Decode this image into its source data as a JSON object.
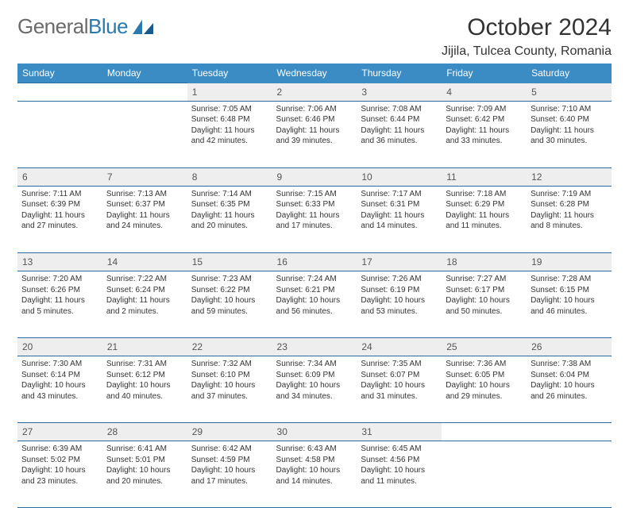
{
  "logo": {
    "word1": "General",
    "word2": "Blue"
  },
  "header": {
    "title": "October 2024",
    "location": "Jijila, Tulcea County, Romania"
  },
  "colors": {
    "header_bg": "#3b8bc4",
    "header_text": "#ffffff",
    "daynum_bg": "#eeeeee",
    "row_divider": "#2a6aa0",
    "text": "#333333",
    "logo_gray": "#6a6a6a",
    "logo_blue": "#2a7ab0"
  },
  "dayNames": [
    "Sunday",
    "Monday",
    "Tuesday",
    "Wednesday",
    "Thursday",
    "Friday",
    "Saturday"
  ],
  "weeks": [
    [
      null,
      null,
      {
        "n": "1",
        "sr": "Sunrise: 7:05 AM",
        "ss": "Sunset: 6:48 PM",
        "dl": "Daylight: 11 hours and 42 minutes."
      },
      {
        "n": "2",
        "sr": "Sunrise: 7:06 AM",
        "ss": "Sunset: 6:46 PM",
        "dl": "Daylight: 11 hours and 39 minutes."
      },
      {
        "n": "3",
        "sr": "Sunrise: 7:08 AM",
        "ss": "Sunset: 6:44 PM",
        "dl": "Daylight: 11 hours and 36 minutes."
      },
      {
        "n": "4",
        "sr": "Sunrise: 7:09 AM",
        "ss": "Sunset: 6:42 PM",
        "dl": "Daylight: 11 hours and 33 minutes."
      },
      {
        "n": "5",
        "sr": "Sunrise: 7:10 AM",
        "ss": "Sunset: 6:40 PM",
        "dl": "Daylight: 11 hours and 30 minutes."
      }
    ],
    [
      {
        "n": "6",
        "sr": "Sunrise: 7:11 AM",
        "ss": "Sunset: 6:39 PM",
        "dl": "Daylight: 11 hours and 27 minutes."
      },
      {
        "n": "7",
        "sr": "Sunrise: 7:13 AM",
        "ss": "Sunset: 6:37 PM",
        "dl": "Daylight: 11 hours and 24 minutes."
      },
      {
        "n": "8",
        "sr": "Sunrise: 7:14 AM",
        "ss": "Sunset: 6:35 PM",
        "dl": "Daylight: 11 hours and 20 minutes."
      },
      {
        "n": "9",
        "sr": "Sunrise: 7:15 AM",
        "ss": "Sunset: 6:33 PM",
        "dl": "Daylight: 11 hours and 17 minutes."
      },
      {
        "n": "10",
        "sr": "Sunrise: 7:17 AM",
        "ss": "Sunset: 6:31 PM",
        "dl": "Daylight: 11 hours and 14 minutes."
      },
      {
        "n": "11",
        "sr": "Sunrise: 7:18 AM",
        "ss": "Sunset: 6:29 PM",
        "dl": "Daylight: 11 hours and 11 minutes."
      },
      {
        "n": "12",
        "sr": "Sunrise: 7:19 AM",
        "ss": "Sunset: 6:28 PM",
        "dl": "Daylight: 11 hours and 8 minutes."
      }
    ],
    [
      {
        "n": "13",
        "sr": "Sunrise: 7:20 AM",
        "ss": "Sunset: 6:26 PM",
        "dl": "Daylight: 11 hours and 5 minutes."
      },
      {
        "n": "14",
        "sr": "Sunrise: 7:22 AM",
        "ss": "Sunset: 6:24 PM",
        "dl": "Daylight: 11 hours and 2 minutes."
      },
      {
        "n": "15",
        "sr": "Sunrise: 7:23 AM",
        "ss": "Sunset: 6:22 PM",
        "dl": "Daylight: 10 hours and 59 minutes."
      },
      {
        "n": "16",
        "sr": "Sunrise: 7:24 AM",
        "ss": "Sunset: 6:21 PM",
        "dl": "Daylight: 10 hours and 56 minutes."
      },
      {
        "n": "17",
        "sr": "Sunrise: 7:26 AM",
        "ss": "Sunset: 6:19 PM",
        "dl": "Daylight: 10 hours and 53 minutes."
      },
      {
        "n": "18",
        "sr": "Sunrise: 7:27 AM",
        "ss": "Sunset: 6:17 PM",
        "dl": "Daylight: 10 hours and 50 minutes."
      },
      {
        "n": "19",
        "sr": "Sunrise: 7:28 AM",
        "ss": "Sunset: 6:15 PM",
        "dl": "Daylight: 10 hours and 46 minutes."
      }
    ],
    [
      {
        "n": "20",
        "sr": "Sunrise: 7:30 AM",
        "ss": "Sunset: 6:14 PM",
        "dl": "Daylight: 10 hours and 43 minutes."
      },
      {
        "n": "21",
        "sr": "Sunrise: 7:31 AM",
        "ss": "Sunset: 6:12 PM",
        "dl": "Daylight: 10 hours and 40 minutes."
      },
      {
        "n": "22",
        "sr": "Sunrise: 7:32 AM",
        "ss": "Sunset: 6:10 PM",
        "dl": "Daylight: 10 hours and 37 minutes."
      },
      {
        "n": "23",
        "sr": "Sunrise: 7:34 AM",
        "ss": "Sunset: 6:09 PM",
        "dl": "Daylight: 10 hours and 34 minutes."
      },
      {
        "n": "24",
        "sr": "Sunrise: 7:35 AM",
        "ss": "Sunset: 6:07 PM",
        "dl": "Daylight: 10 hours and 31 minutes."
      },
      {
        "n": "25",
        "sr": "Sunrise: 7:36 AM",
        "ss": "Sunset: 6:05 PM",
        "dl": "Daylight: 10 hours and 29 minutes."
      },
      {
        "n": "26",
        "sr": "Sunrise: 7:38 AM",
        "ss": "Sunset: 6:04 PM",
        "dl": "Daylight: 10 hours and 26 minutes."
      }
    ],
    [
      {
        "n": "27",
        "sr": "Sunrise: 6:39 AM",
        "ss": "Sunset: 5:02 PM",
        "dl": "Daylight: 10 hours and 23 minutes."
      },
      {
        "n": "28",
        "sr": "Sunrise: 6:41 AM",
        "ss": "Sunset: 5:01 PM",
        "dl": "Daylight: 10 hours and 20 minutes."
      },
      {
        "n": "29",
        "sr": "Sunrise: 6:42 AM",
        "ss": "Sunset: 4:59 PM",
        "dl": "Daylight: 10 hours and 17 minutes."
      },
      {
        "n": "30",
        "sr": "Sunrise: 6:43 AM",
        "ss": "Sunset: 4:58 PM",
        "dl": "Daylight: 10 hours and 14 minutes."
      },
      {
        "n": "31",
        "sr": "Sunrise: 6:45 AM",
        "ss": "Sunset: 4:56 PM",
        "dl": "Daylight: 10 hours and 11 minutes."
      },
      null,
      null
    ]
  ]
}
